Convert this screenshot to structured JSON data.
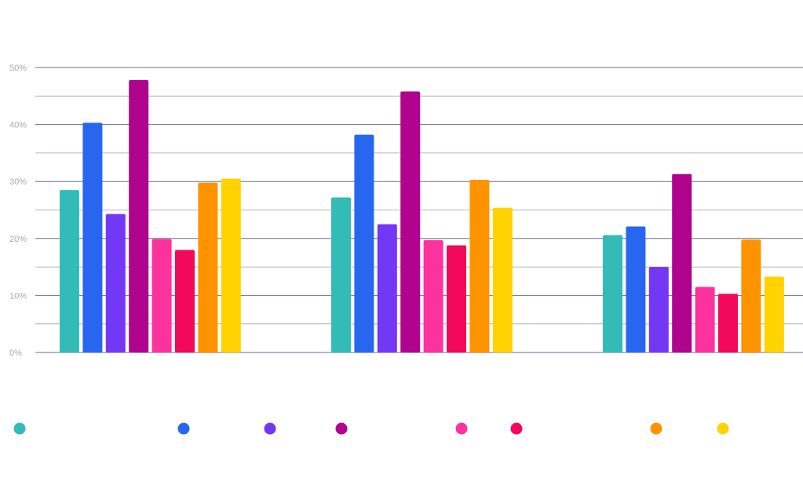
{
  "chart_data": {
    "type": "bar",
    "title": "",
    "xlabel": "",
    "ylabel": "",
    "ylim": [
      0,
      50
    ],
    "y_ticks": [
      "0%",
      "10%",
      "20%",
      "30%",
      "40%",
      "50%"
    ],
    "y_tick_values": [
      0,
      10,
      20,
      30,
      40,
      50
    ],
    "minor_gridlines": [
      5,
      15,
      25,
      35,
      45
    ],
    "grid": true,
    "legend_position": "bottom",
    "categories": [
      "",
      "",
      ""
    ],
    "series": [
      {
        "color": "#33bbb8",
        "values": [
          28.5,
          27.2,
          20.6
        ]
      },
      {
        "color": "#2966f0",
        "values": [
          40.3,
          38.2,
          22.1
        ]
      },
      {
        "color": "#7337f5",
        "values": [
          24.3,
          22.5,
          15.0
        ]
      },
      {
        "color": "#b0038e",
        "values": [
          47.8,
          45.8,
          31.3
        ]
      },
      {
        "color": "#fc329e",
        "values": [
          19.9,
          19.7,
          11.5
        ]
      },
      {
        "color": "#f3095c",
        "values": [
          18.0,
          18.8,
          10.3
        ]
      },
      {
        "color": "#fe9300",
        "values": [
          29.8,
          30.3,
          19.8
        ]
      },
      {
        "color": "#ffd200",
        "values": [
          30.5,
          25.4,
          13.3
        ]
      }
    ]
  }
}
